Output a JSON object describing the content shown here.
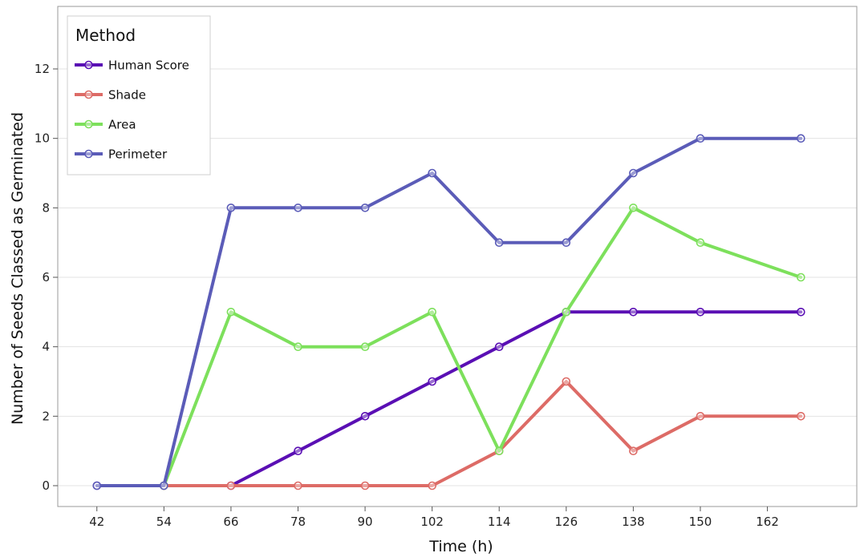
{
  "chart_data": {
    "type": "line",
    "title": "",
    "xlabel": "Time (h)",
    "ylabel": "Number of Seeds Classed as Germinated",
    "x": [
      42,
      54,
      66,
      78,
      90,
      102,
      114,
      126,
      138,
      150,
      168
    ],
    "x_ticks": [
      "42",
      "54",
      "66",
      "78",
      "90",
      "102",
      "114",
      "126",
      "138",
      "150",
      "162"
    ],
    "y_ticks": [
      "0",
      "2",
      "4",
      "6",
      "8",
      "10",
      "12"
    ],
    "xlim": [
      35,
      178
    ],
    "ylim": [
      -0.6,
      13.8
    ],
    "grid": true,
    "legend": {
      "title": "Method",
      "position": "top-left"
    },
    "series": [
      {
        "name": "Human Score",
        "color": "#5a0fb4",
        "values": [
          0,
          0,
          0,
          1,
          2,
          3,
          4,
          5,
          5,
          5,
          5
        ]
      },
      {
        "name": "Shade",
        "color": "#dd6b66",
        "values": [
          null,
          0,
          0,
          0,
          0,
          0,
          1,
          3,
          1,
          2,
          2
        ]
      },
      {
        "name": "Area",
        "color": "#7de05c",
        "values": [
          null,
          0,
          5,
          4,
          4,
          5,
          1,
          5,
          8,
          7,
          6
        ]
      },
      {
        "name": "Perimeter",
        "color": "#5b5cb8",
        "values": [
          0,
          0,
          8,
          8,
          8,
          9,
          7,
          7,
          9,
          10,
          10
        ]
      }
    ]
  }
}
